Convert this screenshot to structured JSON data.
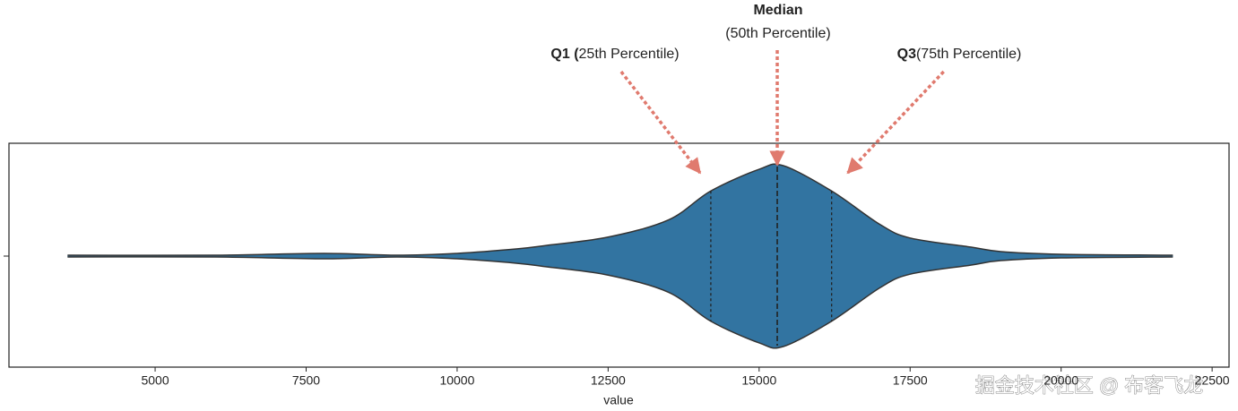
{
  "chart_data": {
    "type": "violin",
    "x_label": "value",
    "xlim": [
      2580,
      22780
    ],
    "xticks": [
      5000,
      7500,
      10000,
      12500,
      15000,
      17500,
      20000,
      22500
    ],
    "color": "#3274a1",
    "density_x": [
      3550,
      6000,
      7800,
      9000,
      10000,
      11000,
      11500,
      12500,
      13500,
      14200,
      15000,
      15400,
      16200,
      17000,
      17500,
      18500,
      19000,
      20000,
      21850
    ],
    "density": [
      0.01,
      0.01,
      0.03,
      0.01,
      0.03,
      0.08,
      0.12,
      0.21,
      0.4,
      0.72,
      0.96,
      1.0,
      0.72,
      0.35,
      0.2,
      0.1,
      0.05,
      0.02,
      0.01
    ],
    "quartiles": [
      14200,
      15300,
      16200
    ],
    "annotations": [
      {
        "bold": "Q1 (",
        "text": "25th Percentile)"
      },
      {
        "bold": "Median",
        "text": "(50th Percentile)"
      },
      {
        "bold": "Q3",
        "text": "(75th Percentile)"
      }
    ]
  },
  "watermark": "掘金技术社区 @ 布客飞龙"
}
